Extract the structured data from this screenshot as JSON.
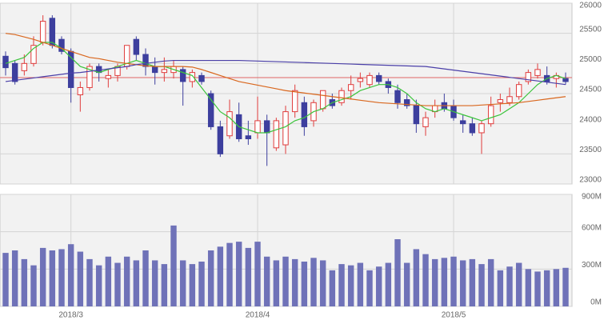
{
  "chart_data": [
    {
      "type": "candlestick",
      "categories": [
        null,
        null,
        null,
        null,
        null,
        null,
        null,
        "2018/3",
        null,
        null,
        null,
        null,
        null,
        null,
        null,
        null,
        null,
        null,
        null,
        null,
        null,
        null,
        null,
        null,
        null,
        null,
        null,
        "2018/4",
        null,
        null,
        null,
        null,
        null,
        null,
        null,
        null,
        null,
        null,
        null,
        null,
        null,
        null,
        null,
        null,
        null,
        null,
        null,
        null,
        "2018/5",
        null,
        null,
        null,
        null,
        null,
        null,
        null,
        null,
        null,
        null,
        null,
        null
      ],
      "open": [
        25120,
        25000,
        24880,
        25000,
        25350,
        25750,
        25400,
        25200,
        24480,
        24600,
        24950,
        24750,
        24800,
        24950,
        25400,
        25150,
        24950,
        24850,
        24850,
        24900,
        24700,
        24800,
        24500,
        23950,
        23800,
        24150,
        23800,
        23850,
        24050,
        23600,
        23650,
        24200,
        24350,
        24050,
        24250,
        24400,
        24350,
        24550,
        24700,
        24650,
        24800,
        24700,
        24550,
        24400,
        24300,
        23950,
        24200,
        24350,
        24300,
        24050,
        24000,
        23850,
        24000,
        24350,
        24350,
        24450,
        24700,
        24800,
        24800,
        24750,
        24750
      ],
      "high": [
        25200,
        25050,
        25150,
        25450,
        25800,
        25800,
        25450,
        25250,
        24700,
        25000,
        25000,
        24900,
        25000,
        25300,
        25450,
        25250,
        25100,
        25100,
        25050,
        24950,
        24900,
        24850,
        24550,
        24050,
        24400,
        24350,
        24050,
        24450,
        24150,
        24100,
        24300,
        24650,
        24450,
        24400,
        24550,
        24500,
        24600,
        24800,
        24850,
        24850,
        24850,
        24750,
        24650,
        24500,
        24400,
        24200,
        24400,
        24500,
        24400,
        24150,
        24100,
        24050,
        24450,
        24500,
        24600,
        24700,
        24900,
        25000,
        24950,
        24850,
        24850
      ],
      "low": [
        24800,
        24650,
        24800,
        24950,
        25300,
        25250,
        25150,
        24350,
        24200,
        24550,
        24700,
        24600,
        24700,
        24900,
        25050,
        24800,
        24650,
        24700,
        24750,
        24300,
        24600,
        24650,
        23900,
        23450,
        23750,
        23700,
        23650,
        23750,
        23300,
        23550,
        23500,
        24100,
        23800,
        23950,
        24200,
        24250,
        24300,
        24400,
        24600,
        24600,
        24650,
        24500,
        24250,
        24250,
        23850,
        23800,
        24100,
        24200,
        24050,
        23850,
        23800,
        23500,
        23950,
        24200,
        24300,
        24400,
        24650,
        24750,
        24650,
        24600,
        24650
      ],
      "close": [
        24930,
        24700,
        25000,
        25300,
        25700,
        25300,
        25200,
        24600,
        24600,
        24950,
        24850,
        24800,
        24950,
        25300,
        25150,
        24950,
        24850,
        24900,
        24950,
        24700,
        24850,
        24700,
        23950,
        23500,
        24200,
        23750,
        23750,
        24050,
        23850,
        24050,
        24200,
        24550,
        23950,
        24350,
        24550,
        24300,
        24550,
        24650,
        24750,
        24800,
        24700,
        24600,
        24350,
        24300,
        24000,
        24100,
        24300,
        24250,
        24100,
        24000,
        23850,
        24000,
        24300,
        24400,
        24450,
        24650,
        24850,
        24900,
        24700,
        24800,
        24700
      ],
      "up_color": "#e03c3c",
      "down_color": "#3d3f9e",
      "series": [
        {
          "color": "#3cc43c",
          "values": [
            25000,
            25050,
            25100,
            25250,
            25350,
            25350,
            25250,
            25100,
            24950,
            24900,
            24850,
            24900,
            24950,
            25000,
            25050,
            25000,
            24950,
            24950,
            24900,
            24850,
            24800,
            24600,
            24400,
            24200,
            24100,
            23950,
            23900,
            23850,
            23850,
            23900,
            23950,
            24050,
            24100,
            24200,
            24250,
            24350,
            24400,
            24450,
            24550,
            24600,
            24650,
            24650,
            24600,
            24500,
            24350,
            24250,
            24200,
            24250,
            24200,
            24150,
            24100,
            24050,
            24100,
            24150,
            24250,
            24350,
            24500,
            24650,
            24750,
            24800,
            24750
          ]
        },
        {
          "color": "#d9671e",
          "values": [
            25500,
            25480,
            25440,
            25400,
            25350,
            25300,
            25250,
            25200,
            25150,
            25100,
            25080,
            25050,
            25020,
            25000,
            24980,
            24960,
            24950,
            24950,
            24950,
            24950,
            24940,
            24900,
            24850,
            24800,
            24750,
            24700,
            24670,
            24640,
            24610,
            24580,
            24550,
            24530,
            24510,
            24490,
            24470,
            24450,
            24430,
            24410,
            24390,
            24370,
            24350,
            24340,
            24330,
            24320,
            24310,
            24300,
            24300,
            24300,
            24300,
            24300,
            24300,
            24310,
            24320,
            24330,
            24340,
            24350,
            24370,
            24390,
            24410,
            24430,
            24450
          ]
        },
        {
          "color": "#4a3fa8",
          "values": [
            24700,
            24720,
            24740,
            24760,
            24780,
            24800,
            24820,
            24840,
            24850,
            24870,
            24890,
            24910,
            24930,
            24950,
            24980,
            25000,
            25020,
            25040,
            25050,
            25050,
            25050,
            25050,
            25050,
            25050,
            25050,
            25050,
            25045,
            25040,
            25035,
            25030,
            25025,
            25020,
            25015,
            25010,
            25005,
            25000,
            24995,
            24990,
            24985,
            24980,
            24975,
            24970,
            24965,
            24960,
            24955,
            24950,
            24930,
            24910,
            24890,
            24870,
            24850,
            24830,
            24810,
            24790,
            24770,
            24750,
            24730,
            24710,
            24690,
            24670,
            24650
          ]
        }
      ],
      "hline": {
        "value": 24765,
        "color": "#e06666"
      },
      "ylim": [
        23000,
        26000
      ],
      "yticks": [
        23000,
        23500,
        24000,
        24500,
        25000,
        25500,
        26000
      ],
      "grid": true
    },
    {
      "type": "bar",
      "color": "#6f72b8",
      "values": [
        430,
        450,
        380,
        330,
        470,
        450,
        460,
        500,
        440,
        380,
        330,
        400,
        350,
        400,
        370,
        450,
        370,
        340,
        650,
        370,
        340,
        360,
        450,
        480,
        510,
        520,
        470,
        520,
        400,
        370,
        400,
        380,
        360,
        390,
        370,
        290,
        340,
        330,
        350,
        290,
        320,
        350,
        540,
        350,
        460,
        420,
        380,
        390,
        400,
        370,
        380,
        340,
        380,
        290,
        320,
        350,
        300,
        280,
        290,
        300,
        310
      ],
      "ylim": [
        0,
        900
      ],
      "yticks": [
        {
          "value": 0,
          "label": "0M"
        },
        {
          "value": 300,
          "label": "300M"
        },
        {
          "value": 600,
          "label": "600M"
        },
        {
          "value": 900,
          "label": "900M"
        }
      ],
      "grid": true
    }
  ]
}
